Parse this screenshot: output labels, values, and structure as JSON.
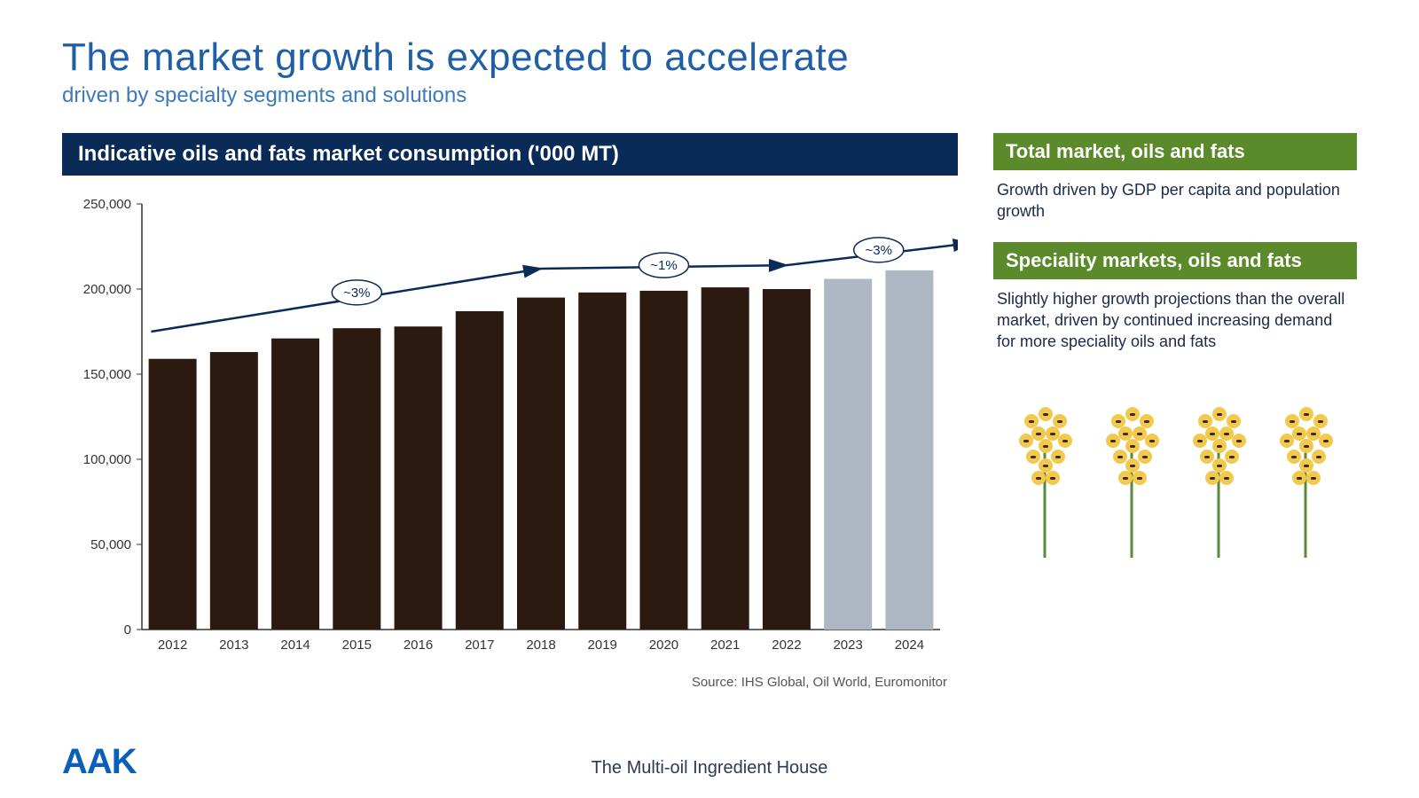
{
  "title": "The market growth is expected to accelerate",
  "title_color": "#1f5fa8",
  "subtitle": "driven by specialty segments and solutions",
  "subtitle_color": "#3a7abd",
  "chart": {
    "type": "bar",
    "title": "Indicative oils and fats market consumption ('000 MT)",
    "title_bg": "#0a2a58",
    "categories": [
      "2012",
      "2013",
      "2014",
      "2015",
      "2016",
      "2017",
      "2018",
      "2019",
      "2020",
      "2021",
      "2022",
      "2023",
      "2024"
    ],
    "values": [
      159000,
      163000,
      171000,
      177000,
      178000,
      187000,
      195000,
      198000,
      199000,
      201000,
      200000,
      206000,
      211000
    ],
    "bar_colors": [
      "#2c1a10",
      "#2c1a10",
      "#2c1a10",
      "#2c1a10",
      "#2c1a10",
      "#2c1a10",
      "#2c1a10",
      "#2c1a10",
      "#2c1a10",
      "#2c1a10",
      "#2c1a10",
      "#aeb8c4",
      "#aeb8c4"
    ],
    "ylim": [
      0,
      250000
    ],
    "ytick_step": 50000,
    "yticks": [
      "0",
      "50,000",
      "100,000",
      "150,000",
      "200,000",
      "250,000"
    ],
    "axis_color": "#333333",
    "tick_font_size": 15,
    "bar_gap_ratio": 0.22,
    "trend_line_color": "#0a2a58",
    "trend_line_width": 2.5,
    "trend_points": [
      {
        "x_idx": 0.0,
        "y": 175000
      },
      {
        "x_idx": 6.0,
        "y": 212000
      },
      {
        "x_idx": 10.0,
        "y": 214000
      },
      {
        "x_idx": 13.0,
        "y": 227000
      }
    ],
    "trend_labels": [
      {
        "text": "~3%",
        "x_idx": 3.0,
        "y": 198000
      },
      {
        "text": "~1%",
        "x_idx": 8.0,
        "y": 214000
      },
      {
        "text": "~3%",
        "x_idx": 11.5,
        "y": 223000
      }
    ],
    "source": "Source: IHS Global, Oil World, Euromonitor"
  },
  "side": {
    "head_bg": "#5a8a2a",
    "sections": [
      {
        "head": "Total market, oils and fats",
        "body": "Growth driven by GDP per capita and population growth"
      },
      {
        "head": "Speciality markets, oils and fats",
        "body": "Slightly higher growth projections than the overall market, driven by continued increasing demand for more speciality oils and fats"
      }
    ]
  },
  "flower_petal_color": "#f2c94c",
  "flower_stem_color": "#5a8a3a",
  "logo": {
    "text": "AAK",
    "color": "#0a5fb8"
  },
  "footer": "The Multi-oil Ingredient House"
}
